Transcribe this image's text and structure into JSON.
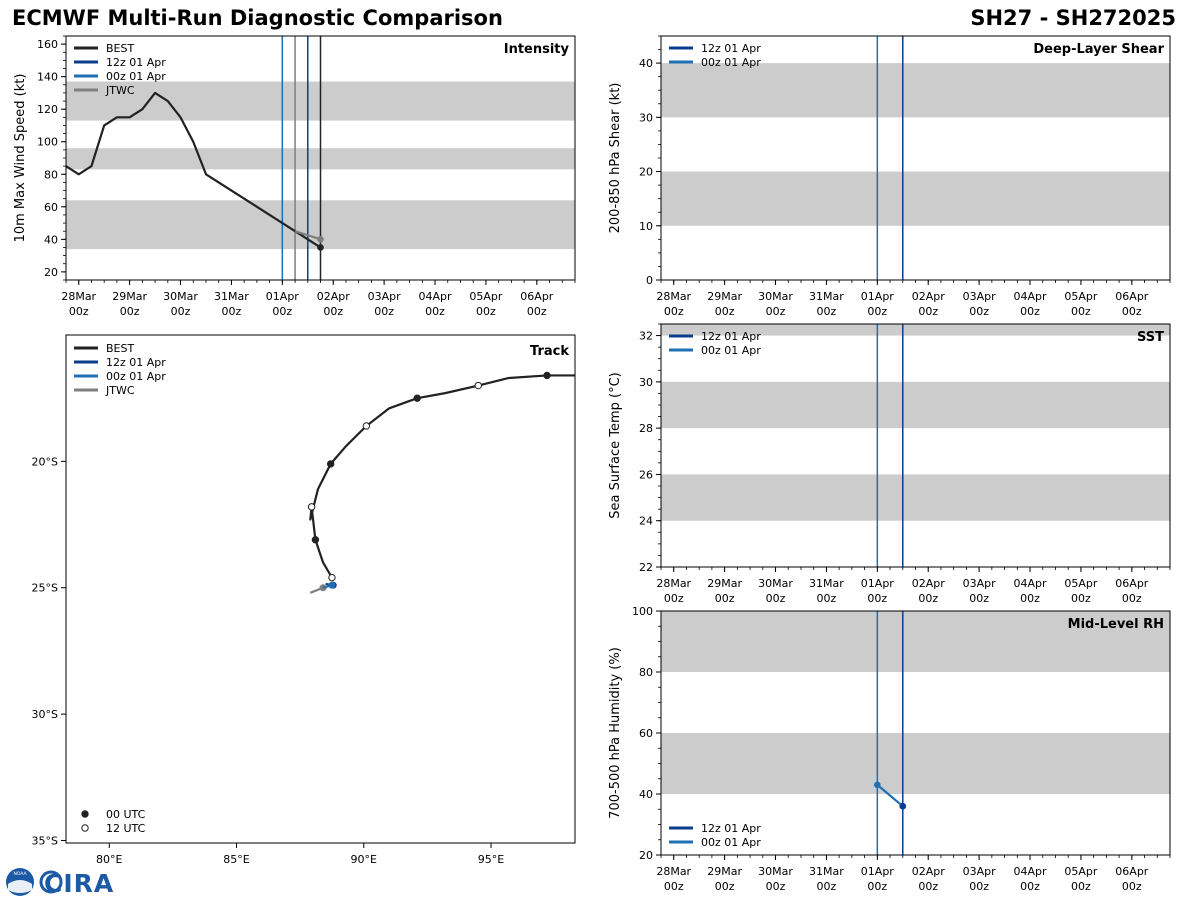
{
  "header": {
    "title": "ECMWF Multi-Run Diagnostic Comparison",
    "storm_id": "SH27 - SH272025"
  },
  "logo": {
    "noaa": "NOAA",
    "cira": "CIRA"
  },
  "colors": {
    "best": "#222222",
    "run12z": "#0b3d8c",
    "run00z": "#1f6fb5",
    "jtwc": "#7f7f7f",
    "band": "#cccccc",
    "frame": "#000000"
  },
  "time_axis": {
    "ticks": [
      {
        "day": 0,
        "label": "28Mar",
        "sub": "00z"
      },
      {
        "day": 1,
        "label": "29Mar",
        "sub": "00z"
      },
      {
        "day": 2,
        "label": "30Mar",
        "sub": "00z"
      },
      {
        "day": 3,
        "label": "31Mar",
        "sub": "00z"
      },
      {
        "day": 4,
        "label": "01Apr",
        "sub": "00z"
      },
      {
        "day": 5,
        "label": "02Apr",
        "sub": "00z"
      },
      {
        "day": 6,
        "label": "03Apr",
        "sub": "00z"
      },
      {
        "day": 7,
        "label": "04Apr",
        "sub": "00z"
      },
      {
        "day": 8,
        "label": "05Apr",
        "sub": "00z"
      },
      {
        "day": 9,
        "label": "06Apr",
        "sub": "00z"
      }
    ],
    "range_days": [
      -0.25,
      9.75
    ]
  },
  "chart_data": [
    {
      "id": "intensity",
      "type": "line",
      "title": "Intensity",
      "ylabel": "10m Max Wind Speed (kt)",
      "ylim": [
        15,
        165
      ],
      "yticks": [
        20,
        40,
        60,
        80,
        100,
        120,
        140,
        160
      ],
      "bands": [
        [
          34,
          64
        ],
        [
          83,
          96
        ],
        [
          113,
          137
        ]
      ],
      "vlines": [
        {
          "day": 4.0,
          "color_key": "run00z"
        },
        {
          "day": 4.25,
          "color_key": "jtwc"
        },
        {
          "day": 4.5,
          "color_key": "run12z"
        },
        {
          "day": 4.75,
          "color_key": "best"
        }
      ],
      "legend": [
        {
          "label": "BEST",
          "color_key": "best"
        },
        {
          "label": "12z 01 Apr",
          "color_key": "run12z"
        },
        {
          "label": "00z 01 Apr",
          "color_key": "run00z"
        },
        {
          "label": "JTWC",
          "color_key": "jtwc"
        }
      ],
      "legend_position": "top-left",
      "series": [
        {
          "name": "BEST",
          "color_key": "best",
          "marker_last": true,
          "x": [
            -0.25,
            0,
            0.25,
            0.5,
            0.75,
            1.0,
            1.25,
            1.5,
            1.75,
            2.0,
            2.25,
            2.5,
            4.75
          ],
          "y": [
            85,
            80,
            85,
            110,
            115,
            115,
            120,
            130,
            125,
            115,
            100,
            80,
            35
          ]
        },
        {
          "name": "JTWC",
          "color_key": "jtwc",
          "marker_last": true,
          "x": [
            4.25,
            4.75
          ],
          "y": [
            45,
            40
          ]
        }
      ]
    },
    {
      "id": "track",
      "type": "line",
      "title": "Track",
      "xlim": [
        78.3,
        98.3
      ],
      "ylim": [
        -35.1,
        -15.0
      ],
      "xticks": [
        {
          "v": 80,
          "label": "80°E"
        },
        {
          "v": 85,
          "label": "85°E"
        },
        {
          "v": 90,
          "label": "90°E"
        },
        {
          "v": 95,
          "label": "95°E"
        }
      ],
      "yticks": [
        {
          "v": -20,
          "label": "20°S"
        },
        {
          "v": -25,
          "label": "25°S"
        },
        {
          "v": -30,
          "label": "30°S"
        },
        {
          "v": -35,
          "label": "35°S"
        }
      ],
      "legend": [
        {
          "label": "BEST",
          "color_key": "best"
        },
        {
          "label": "12z 01 Apr",
          "color_key": "run12z"
        },
        {
          "label": "00z 01 Apr",
          "color_key": "run00z"
        },
        {
          "label": "JTWC",
          "color_key": "jtwc"
        }
      ],
      "legend_position": "top-left",
      "marker_legend": [
        {
          "label": "00 UTC",
          "fill": "#222222"
        },
        {
          "label": "12 UTC",
          "fill": "#ffffff"
        }
      ],
      "marker_legend_position": "bottom-left",
      "best_track": {
        "lon": [
          98.3,
          98.0,
          97.2,
          95.7,
          94.5,
          93.2,
          92.1,
          91.0,
          90.1,
          89.3,
          88.7,
          88.2,
          87.9,
          87.95,
          88.1,
          88.4,
          88.75
        ],
        "lat": [
          -16.6,
          -16.6,
          -16.6,
          -16.7,
          -17.0,
          -17.3,
          -17.5,
          -17.9,
          -18.6,
          -19.4,
          -20.1,
          -21.1,
          -22.3,
          -21.8,
          -23.1,
          -24.0,
          -24.6
        ]
      },
      "best_markers": [
        {
          "lon": 97.2,
          "lat": -16.6,
          "utc": "00"
        },
        {
          "lon": 94.5,
          "lat": -17.0,
          "utc": "12"
        },
        {
          "lon": 92.1,
          "lat": -17.5,
          "utc": "00"
        },
        {
          "lon": 90.1,
          "lat": -18.6,
          "utc": "12"
        },
        {
          "lon": 88.7,
          "lat": -20.1,
          "utc": "00"
        },
        {
          "lon": 87.95,
          "lat": -21.8,
          "utc": "12"
        },
        {
          "lon": 88.1,
          "lat": -23.1,
          "utc": "00"
        },
        {
          "lon": 88.75,
          "lat": -24.6,
          "utc": "12"
        }
      ],
      "series": [
        {
          "name": "JTWC",
          "color_key": "jtwc",
          "lon": [
            87.9,
            88.4
          ],
          "lat": [
            -25.2,
            -25.0
          ]
        },
        {
          "name": "12z 01 Apr",
          "color_key": "run12z",
          "lon": [
            88.5,
            88.8
          ],
          "lat": [
            -24.85,
            -24.9
          ]
        },
        {
          "name": "00z 01 Apr",
          "color_key": "run00z",
          "lon": [
            88.4,
            88.75
          ],
          "lat": [
            -25.0,
            -24.9
          ]
        }
      ]
    },
    {
      "id": "shear",
      "type": "line",
      "title": "Deep-Layer Shear",
      "ylabel": "200-850 hPa Shear (kt)",
      "ylim": [
        0,
        45
      ],
      "yticks": [
        0,
        10,
        20,
        30,
        40
      ],
      "bands": [
        [
          10,
          20
        ],
        [
          30,
          40
        ]
      ],
      "vlines": [
        {
          "day": 4.0,
          "color_key": "run00z"
        },
        {
          "day": 4.5,
          "color_key": "run12z"
        }
      ],
      "legend": [
        {
          "label": "12z 01 Apr",
          "color_key": "run12z"
        },
        {
          "label": "00z 01 Apr",
          "color_key": "run00z"
        }
      ],
      "legend_position": "top-left",
      "series": []
    },
    {
      "id": "sst",
      "type": "line",
      "title": "SST",
      "ylabel": "Sea Surface Temp (°C)",
      "ylim": [
        22,
        32.5
      ],
      "yticks": [
        22,
        24,
        26,
        28,
        30,
        32
      ],
      "bands": [
        [
          24,
          26
        ],
        [
          28,
          30
        ],
        [
          32,
          32.5
        ]
      ],
      "vlines": [
        {
          "day": 4.0,
          "color_key": "run00z"
        },
        {
          "day": 4.5,
          "color_key": "run12z"
        }
      ],
      "legend": [
        {
          "label": "12z 01 Apr",
          "color_key": "run12z"
        },
        {
          "label": "00z 01 Apr",
          "color_key": "run00z"
        }
      ],
      "legend_position": "top-left",
      "series": []
    },
    {
      "id": "rh",
      "type": "line",
      "title": "Mid-Level RH",
      "ylabel": "700-500 hPa Humidity (%)",
      "ylim": [
        20,
        100
      ],
      "yticks": [
        20,
        40,
        60,
        80,
        100
      ],
      "bands": [
        [
          40,
          60
        ],
        [
          80,
          100
        ]
      ],
      "vlines": [
        {
          "day": 4.0,
          "color_key": "run00z"
        },
        {
          "day": 4.5,
          "color_key": "run12z"
        }
      ],
      "legend": [
        {
          "label": "12z 01 Apr",
          "color_key": "run12z"
        },
        {
          "label": "00z 01 Apr",
          "color_key": "run00z"
        }
      ],
      "legend_position": "bottom-left",
      "series": [
        {
          "name": "00z 01 Apr",
          "color_key": "run00z",
          "marker_all": true,
          "x": [
            4.0,
            4.5
          ],
          "y": [
            43,
            36
          ]
        },
        {
          "name": "12z 01 Apr",
          "color_key": "run12z",
          "marker_all": true,
          "x": [
            4.5
          ],
          "y": [
            36
          ]
        }
      ]
    }
  ]
}
